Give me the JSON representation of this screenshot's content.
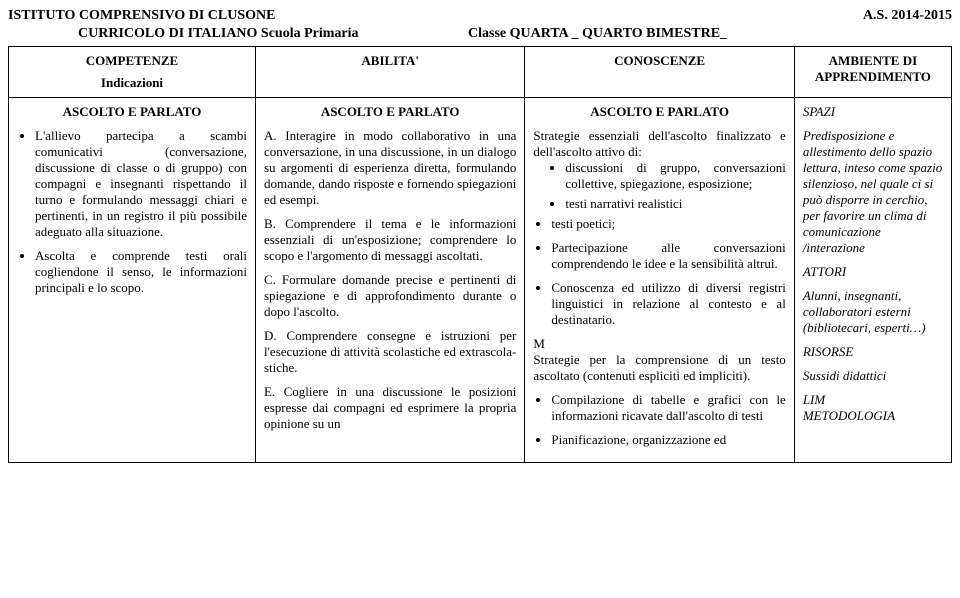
{
  "header": {
    "left": "ISTITUTO COMPRENSIVO DI CLUSONE",
    "right": "A.S. 2014-2015",
    "sub_left": "CURRICOLO DI  ITALIANO  Scuola Primaria",
    "sub_right": "Classe QUARTA _  QUARTO BIMESTRE_"
  },
  "columns": {
    "competenze": "COMPETENZE",
    "indicazioni": "Indicazioni",
    "abilita": "ABILITA'",
    "conoscenze": "CONOSCENZE",
    "ambiente": "AMBIENTE DI APPRENDIMENTO"
  },
  "row1": {
    "competenze": {
      "title": "ASCOLTO E PARLATO",
      "b1": "L'allievo partecipa a scambi comunicativi (conversazione, discussione di classe o di gruppo) con compagni e insegnanti rispettando il turno e formulando messaggi chiari e pertinenti, in un registro il più possibile adeguato alla situazione.",
      "b2": "Ascolta e comprende testi orali cogliendone il senso, le informazioni principali e lo scopo."
    },
    "abilita": {
      "title": "ASCOLTO E PARLATO",
      "a": "A. Interagire in modo collaborativo in una conversazione, in una discussione, in un dialogo su argomenti di esperienza diretta, formulando domande, dando risposte e fornendo spiegazioni ed esempi.",
      "b": "B. Comprendere il tema e le informazioni essenziali di un'esposizione; comprendere lo scopo e l'argomento di messaggi ascoltati.",
      "c": "C. Formulare domande  precise e pertinenti di spiegazione e di approfondimento durante o dopo l'ascolto.",
      "d": "D. Comprendere  consegne e istruzioni per l'esecuzione di attività scolastiche ed extrascola-stiche.",
      "e": "E. Cogliere  in una discussione le posizioni espresse dai compagni ed esprimere la propria opinione su un"
    },
    "conoscenze": {
      "title": "ASCOLTO E PARLATO",
      "lead": "Strategie essenziali dell'ascolto finalizzato e dell'ascolto attivo di:",
      "i1": "discussioni di gruppo, conversazioni collettive, spiegazione, esposizione;",
      "i2": "testi narrativi realistici",
      "b1": "testi poetici;",
      "b2": "Partecipazione alle conversazioni comprendendo le idee e la sensibilità altrui.",
      "b3": "Conoscenza ed utilizzo di diversi registri linguistici in relazione al contesto e al destinatario.",
      "m": "M",
      "mlead": "Strategie per la comprensione di un testo ascoltato (contenuti espliciti ed impliciti).",
      "m1": "Compilazione di tabelle e grafici con le informazioni ricavate dall'ascolto di testi",
      "m2": "Pianificazione, organizzazione ed"
    },
    "ambiente": {
      "spazi_h": "SPAZI",
      "spazi": "Predisposizione e allestimento dello spazio lettura, inteso come spazio silenzioso, nel quale ci si può disporre in cerchio, per favorire un clima di comunicazione /interazione",
      "attori_h": "ATTORI",
      "attori": "Alunni, insegnanti, collaboratori esterni (bibliotecari, esperti…)",
      "risorse_h": "RISORSE",
      "risorse": "Sussidi didattici",
      "lim": "LIM",
      "met": "METODOLOGIA"
    }
  }
}
